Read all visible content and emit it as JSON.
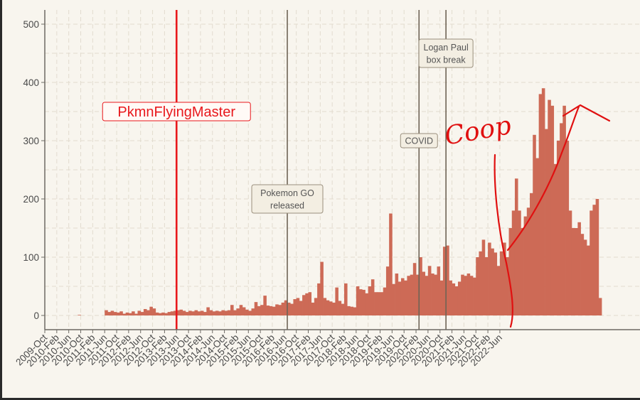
{
  "chart_data": {
    "type": "bar",
    "title": "",
    "xlabel": "",
    "ylabel": "",
    "ylim": [
      0,
      525
    ],
    "y_ticks": [
      "0",
      "100",
      "200",
      "300",
      "400",
      "500"
    ],
    "x_tick_labels": [
      "2009-Oct",
      "2010-Feb",
      "2010-Jun",
      "2010-Oct",
      "2011-Feb",
      "2011-Jun",
      "2011-Oct",
      "2012-Feb",
      "2012-Jun",
      "2012-Oct",
      "2013-Feb",
      "2013-Jun",
      "2013-Oct",
      "2014-Feb",
      "2014-Jun",
      "2014-Oct",
      "2015-Feb",
      "2015-Jun",
      "2015-Oct",
      "2016-Feb",
      "2016-Jun",
      "2016-Oct",
      "2017-Feb",
      "2017-Jun",
      "2017-Oct",
      "2018-Feb",
      "2018-Jun",
      "2018-Oct",
      "2019-Feb",
      "2019-Jun",
      "2019-Oct",
      "2020-Feb",
      "2020-Jun",
      "2020-Oct",
      "2021-Feb",
      "2021-Jun",
      "2021-Oct",
      "2022-Feb",
      "2022-Jun"
    ],
    "start_month": "2009-10",
    "grid": true,
    "bar_color": "#cd6a56",
    "background_color": "#f8f5ee",
    "values": [
      0,
      0,
      0,
      0,
      0,
      0,
      0,
      0,
      0,
      0,
      0,
      1,
      0,
      0,
      0,
      0,
      0,
      0,
      0,
      0,
      9,
      6,
      8,
      6,
      5,
      7,
      3,
      5,
      4,
      7,
      3,
      8,
      6,
      11,
      9,
      15,
      12,
      5,
      4,
      5,
      4,
      6,
      7,
      8,
      9,
      10,
      8,
      6,
      8,
      7,
      9,
      7,
      8,
      6,
      14,
      9,
      7,
      8,
      7,
      9,
      8,
      9,
      18,
      9,
      12,
      18,
      14,
      10,
      8,
      12,
      23,
      16,
      18,
      34,
      17,
      16,
      15,
      19,
      18,
      22,
      26,
      22,
      20,
      28,
      30,
      25,
      35,
      38,
      40,
      22,
      30,
      55,
      92,
      30,
      26,
      24,
      22,
      48,
      25,
      20,
      55,
      16,
      15,
      14,
      50,
      45,
      44,
      38,
      50,
      62,
      40,
      40,
      40,
      48,
      84,
      175,
      54,
      72,
      58,
      64,
      60,
      68,
      70,
      90,
      70,
      100,
      75,
      68,
      85,
      72,
      70,
      84,
      60,
      118,
      120,
      60,
      55,
      50,
      58,
      70,
      68,
      72,
      68,
      65,
      100,
      110,
      130,
      100,
      125,
      115,
      108,
      85,
      110,
      125,
      100,
      150,
      180,
      235,
      180,
      150,
      170,
      185,
      210,
      310,
      270,
      380,
      390,
      320,
      370,
      360,
      260,
      300,
      330,
      360,
      300,
      180,
      150,
      150,
      160,
      140,
      130,
      120,
      180,
      190,
      200,
      30
    ]
  },
  "annotations": [
    {
      "label": "PkmnFlyingMaster",
      "date": "2013-06",
      "color": "#e8181c"
    },
    {
      "label": "Pokemon GO\nreleased",
      "date": "2016-07",
      "color": "#6e6355"
    },
    {
      "label": "COVID",
      "date": "2020-03",
      "color": "#6e6355"
    },
    {
      "label": "Logan Paul\nbox break",
      "date": "2020-12",
      "color": "#6e6355"
    }
  ],
  "handwriting": {
    "text": "Coop",
    "color": "#e01010"
  }
}
